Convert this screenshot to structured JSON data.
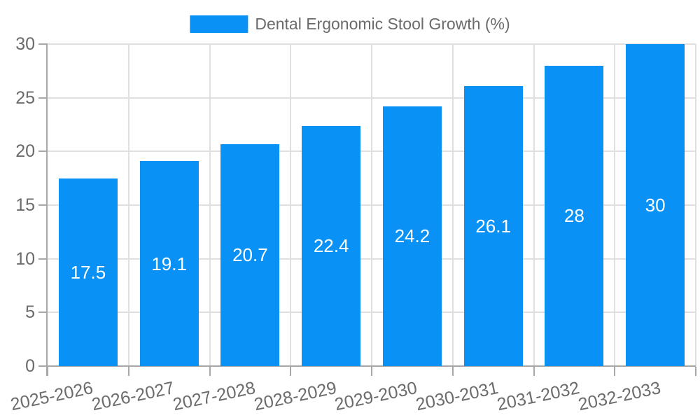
{
  "legend": {
    "label": "Dental Ergonomic Stool Growth (%)"
  },
  "chart_data": {
    "type": "bar",
    "title": "Dental Ergonomic Stool Growth (%)",
    "categories": [
      "2025-2026",
      "2026-2027",
      "2027-2028",
      "2028-2029",
      "2029-2030",
      "2030-2031",
      "2031-2032",
      "2032-2033"
    ],
    "values": [
      17.5,
      19.1,
      20.7,
      22.4,
      24.2,
      26.1,
      28,
      30
    ],
    "value_labels": [
      "17.5",
      "19.1",
      "20.7",
      "22.4",
      "24.2",
      "26.1",
      "28",
      "30"
    ],
    "series": [
      {
        "name": "Dental Ergonomic Stool Growth (%)",
        "values": [
          17.5,
          19.1,
          20.7,
          22.4,
          24.2,
          26.1,
          28,
          30
        ]
      }
    ],
    "xlabel": "",
    "ylabel": "",
    "ylim": [
      0,
      30
    ],
    "yticks": [
      0,
      5,
      10,
      15,
      20,
      25,
      30
    ],
    "ytick_labels": [
      "0",
      "5",
      "10",
      "15",
      "20",
      "25",
      "30"
    ],
    "grid": true,
    "legend_position": "top-center",
    "bar_color": "#0a91f5",
    "value_label_color": "#ffffff"
  },
  "colors": {
    "bar": "#0a91f5",
    "grid": "#e0e0e0",
    "axis": "#a8a8a8",
    "tick_label": "#6b6b6b",
    "legend_text": "#6b6b6b",
    "value_label": "#ffffff",
    "background": "#ffffff"
  }
}
